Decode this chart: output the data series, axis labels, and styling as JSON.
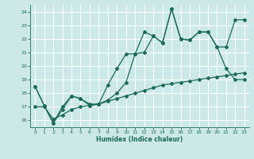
{
  "title": "",
  "xlabel": "Humidex (Indice chaleur)",
  "background_color": "#cce8e8",
  "grid_color": "#ffffff",
  "line_color": "#1a6b5a",
  "xlim": [
    -0.5,
    23.5
  ],
  "ylim": [
    15.5,
    24.5
  ],
  "xticks": [
    0,
    1,
    2,
    3,
    4,
    5,
    6,
    7,
    8,
    9,
    10,
    11,
    12,
    13,
    14,
    15,
    16,
    17,
    18,
    19,
    20,
    21,
    22,
    23
  ],
  "yticks": [
    16,
    17,
    18,
    19,
    20,
    21,
    22,
    23,
    24
  ],
  "line1_x": [
    0,
    1,
    2,
    3,
    4,
    5,
    6,
    7,
    8,
    9,
    10,
    11,
    12,
    13,
    14,
    15,
    16,
    17,
    18,
    19,
    20,
    21,
    22,
    23
  ],
  "line1_y": [
    18.5,
    17.1,
    15.8,
    17.0,
    17.8,
    17.6,
    17.1,
    17.2,
    18.6,
    19.8,
    20.9,
    20.9,
    22.5,
    22.2,
    21.7,
    24.2,
    22.0,
    21.9,
    22.5,
    22.5,
    21.4,
    19.8,
    19.0,
    19.0
  ],
  "line2_x": [
    0,
    1,
    2,
    3,
    4,
    5,
    6,
    7,
    8,
    9,
    10,
    11,
    12,
    13,
    14,
    15,
    16,
    17,
    18,
    19,
    20,
    21,
    22,
    23
  ],
  "line2_y": [
    18.5,
    17.1,
    15.8,
    16.8,
    17.8,
    17.6,
    17.2,
    17.2,
    17.5,
    18.0,
    18.8,
    20.9,
    21.0,
    22.2,
    21.7,
    24.2,
    22.0,
    21.9,
    22.5,
    22.5,
    21.4,
    21.4,
    23.4,
    23.4
  ],
  "line3_x": [
    0,
    1,
    2,
    3,
    4,
    5,
    6,
    7,
    8,
    9,
    10,
    11,
    12,
    13,
    14,
    15,
    16,
    17,
    18,
    19,
    20,
    21,
    22,
    23
  ],
  "line3_y": [
    17.0,
    17.0,
    16.1,
    16.4,
    16.8,
    17.0,
    17.1,
    17.2,
    17.4,
    17.6,
    17.8,
    18.0,
    18.2,
    18.4,
    18.6,
    18.7,
    18.8,
    18.9,
    19.0,
    19.1,
    19.2,
    19.3,
    19.4,
    19.5
  ]
}
